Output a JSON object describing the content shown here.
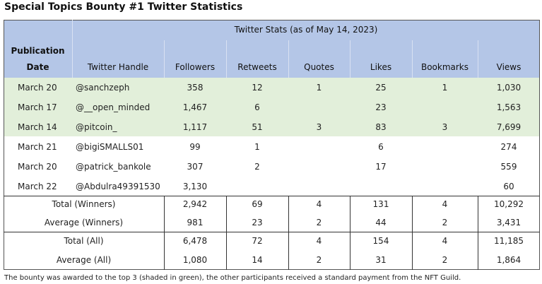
{
  "title": "Special Topics Bounty #1 Twitter Statistics",
  "table": {
    "group_header": "Twitter Stats (as of May 14, 2023)",
    "columns": [
      "Publication Date",
      "Twitter Handle",
      "Followers",
      "Retweets",
      "Quotes",
      "Likes",
      "Bookmarks",
      "Views"
    ],
    "rows": [
      [
        "March 20",
        "@sanchzeph",
        "358",
        "12",
        "1",
        "25",
        "1",
        "1,030"
      ],
      [
        "March 17",
        "@__open_minded",
        "1,467",
        "6",
        null,
        "23",
        null,
        "1,563"
      ],
      [
        "March 14",
        "@pitcoin_",
        "1,117",
        "51",
        "3",
        "83",
        "3",
        "7,699"
      ],
      [
        "March 21",
        "@bigiSMALLS01",
        "99",
        "1",
        null,
        "6",
        null,
        "274"
      ],
      [
        "March 20",
        "@patrick_bankole",
        "307",
        "2",
        null,
        "17",
        null,
        "559"
      ],
      [
        "March 22",
        "@Abdulra49391530",
        "3,130",
        null,
        null,
        null,
        null,
        "60"
      ]
    ],
    "summary": [
      [
        "Total (Winners)",
        "2,942",
        "69",
        "4",
        "131",
        "4",
        "10,292"
      ],
      [
        "Average (Winners)",
        "981",
        "23",
        "2",
        "44",
        "2",
        "3,431"
      ],
      [
        "Total (All)",
        "6,478",
        "72",
        "4",
        "154",
        "4",
        "11,185"
      ],
      [
        "Average (All)",
        "1,080",
        "14",
        "2",
        "31",
        "2",
        "1,864"
      ]
    ]
  },
  "footnote": "The bounty was awarded to the top 3 (shaded in green), the other participants received a standard payment from the NFT Guild."
}
